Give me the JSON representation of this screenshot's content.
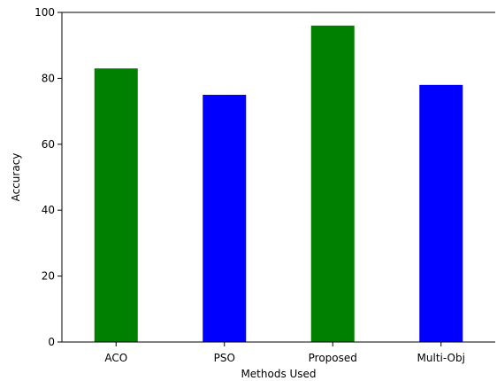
{
  "chart_data": {
    "type": "bar",
    "title": "",
    "xlabel": "Methods Used",
    "ylabel": "Accuracy",
    "categories": [
      "ACO",
      "PSO",
      "Proposed",
      "Multi-Obj"
    ],
    "values": [
      83,
      75,
      96,
      78
    ],
    "bar_colors": [
      "#008000",
      "#0000ff",
      "#008000",
      "#0000ff"
    ],
    "ylim": [
      0,
      100
    ],
    "yticks": [
      0,
      20,
      40,
      60,
      80,
      100
    ],
    "grid": false,
    "legend": "none"
  }
}
